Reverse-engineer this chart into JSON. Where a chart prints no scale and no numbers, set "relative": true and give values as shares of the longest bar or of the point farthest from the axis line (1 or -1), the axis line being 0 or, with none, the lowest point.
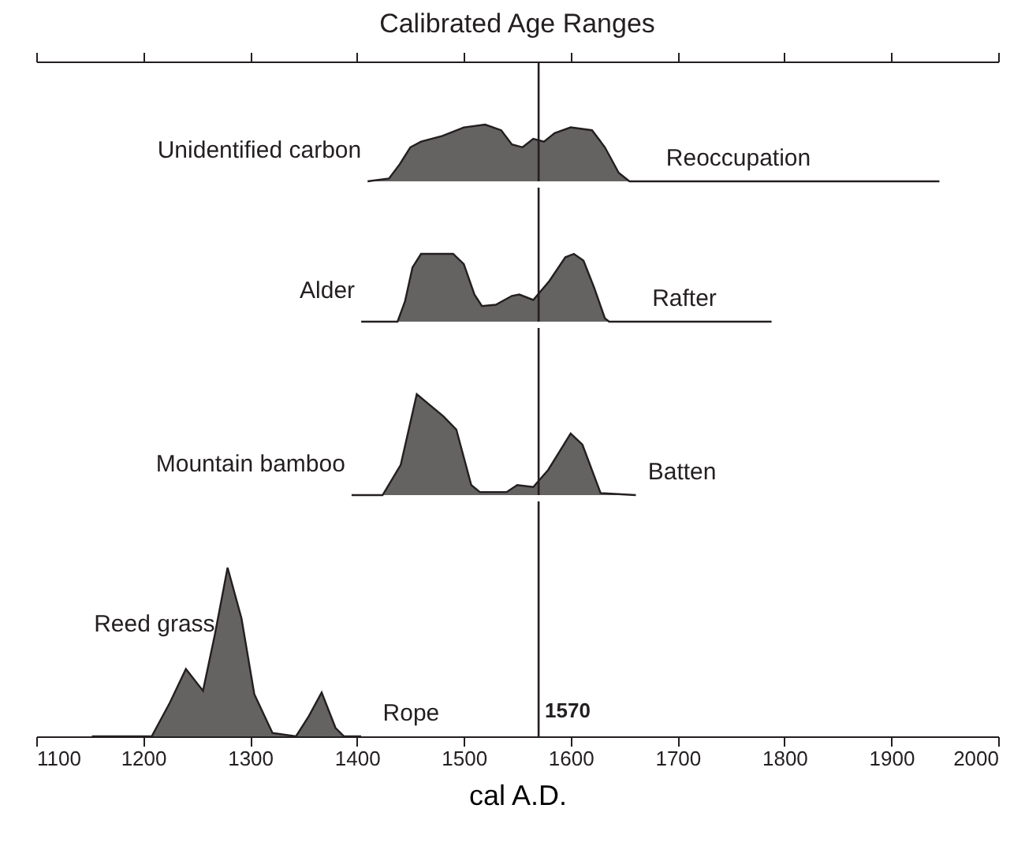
{
  "chart_data": [
    {
      "type": "area",
      "title": "Calibrated Age Ranges",
      "relative": true,
      "xlim": [
        1100,
        2000
      ],
      "tick_labels": false,
      "xticks": [
        {
          "value": 1100,
          "label": null
        },
        {
          "value": 1200,
          "label": null
        },
        {
          "value": 1300,
          "label": null
        },
        {
          "value": 1400,
          "label": null
        },
        {
          "value": 1500,
          "label": null
        },
        {
          "value": 1600,
          "label": null
        },
        {
          "value": 1700,
          "label": null
        },
        {
          "value": 1800,
          "label": null
        },
        {
          "value": 1900,
          "label": null
        },
        {
          "value": 2000,
          "label": null
        }
      ],
      "series": [
        {
          "color": "#231f20",
          "x": [
            1410,
            1430,
            1440,
            1450,
            1460,
            1480,
            1500,
            1520,
            1535,
            1545,
            1555,
            1565,
            1575,
            1585,
            1600,
            1620,
            1632,
            1645,
            1655,
            1945
          ],
          "values": [
            0,
            0.05,
            0.3,
            0.6,
            0.7,
            0.8,
            0.95,
            1.0,
            0.9,
            0.65,
            0.6,
            0.75,
            0.7,
            0.85,
            0.95,
            0.9,
            0.6,
            0.15,
            0,
            0
          ]
        }
      ],
      "annotations": [
        "Unidentified carbon",
        "Reoccupation"
      ],
      "ref_lines": [
        {
          "axis": "x",
          "value": 1570,
          "label": null,
          "color": "#231f20"
        }
      ]
    },
    {
      "type": "area",
      "relative": true,
      "xlim": [
        1100,
        2000
      ],
      "tick_labels": false,
      "series": [
        {
          "color": "#231f20",
          "x": [
            1404,
            1438,
            1445,
            1452,
            1460,
            1490,
            1500,
            1510,
            1517,
            1530,
            1545,
            1552,
            1565,
            1580,
            1595,
            1603,
            1612,
            1622,
            1632,
            1636,
            1788
          ],
          "values": [
            0,
            0,
            0.3,
            0.8,
            1.0,
            1.0,
            0.85,
            0.4,
            0.23,
            0.25,
            0.38,
            0.4,
            0.32,
            0.6,
            0.95,
            1.0,
            0.9,
            0.5,
            0.05,
            0,
            0
          ]
        }
      ],
      "annotations": [
        "Alder",
        "Rafter"
      ],
      "ref_lines": [
        {
          "axis": "x",
          "value": 1570,
          "label": null,
          "color": "#231f20"
        }
      ]
    },
    {
      "type": "area",
      "relative": true,
      "xlim": [
        1100,
        2000
      ],
      "tick_labels": false,
      "series": [
        {
          "color": "#231f20",
          "x": [
            1395,
            1424,
            1441,
            1456,
            1481,
            1493,
            1507,
            1515,
            1540,
            1550,
            1565,
            1579,
            1600,
            1611,
            1628,
            1661
          ],
          "values": [
            0,
            0,
            0.3,
            1.0,
            0.78,
            0.65,
            0.1,
            0.03,
            0.03,
            0.1,
            0.08,
            0.25,
            0.61,
            0.5,
            0.02,
            0
          ]
        }
      ],
      "annotations": [
        "Mountain bamboo",
        "Batten"
      ],
      "ref_lines": [
        {
          "axis": "x",
          "value": 1570,
          "label": null,
          "color": "#231f20"
        }
      ]
    },
    {
      "type": "area",
      "relative": true,
      "xlim": [
        1100,
        2000
      ],
      "xlabel": "cal A.D.",
      "tick_labels": "x",
      "xticks": [
        1100,
        1200,
        1300,
        1400,
        1500,
        1600,
        1700,
        1800,
        1900,
        2000
      ],
      "series": [
        {
          "color": "#231f20",
          "x": [
            1152,
            1208,
            1225,
            1240,
            1256,
            1267,
            1279,
            1292,
            1304,
            1321,
            1343,
            1355,
            1367,
            1380,
            1388,
            1404
          ],
          "values": [
            0,
            0,
            0.2,
            0.4,
            0.27,
            0.6,
            1.0,
            0.7,
            0.25,
            0.02,
            0,
            0.12,
            0.26,
            0.05,
            0,
            0
          ]
        }
      ],
      "annotations": [
        "Reed grass",
        "Rope"
      ],
      "ref_lines": [
        {
          "axis": "x",
          "value": 1570,
          "label": "1570",
          "color": "#231f20"
        }
      ]
    }
  ]
}
